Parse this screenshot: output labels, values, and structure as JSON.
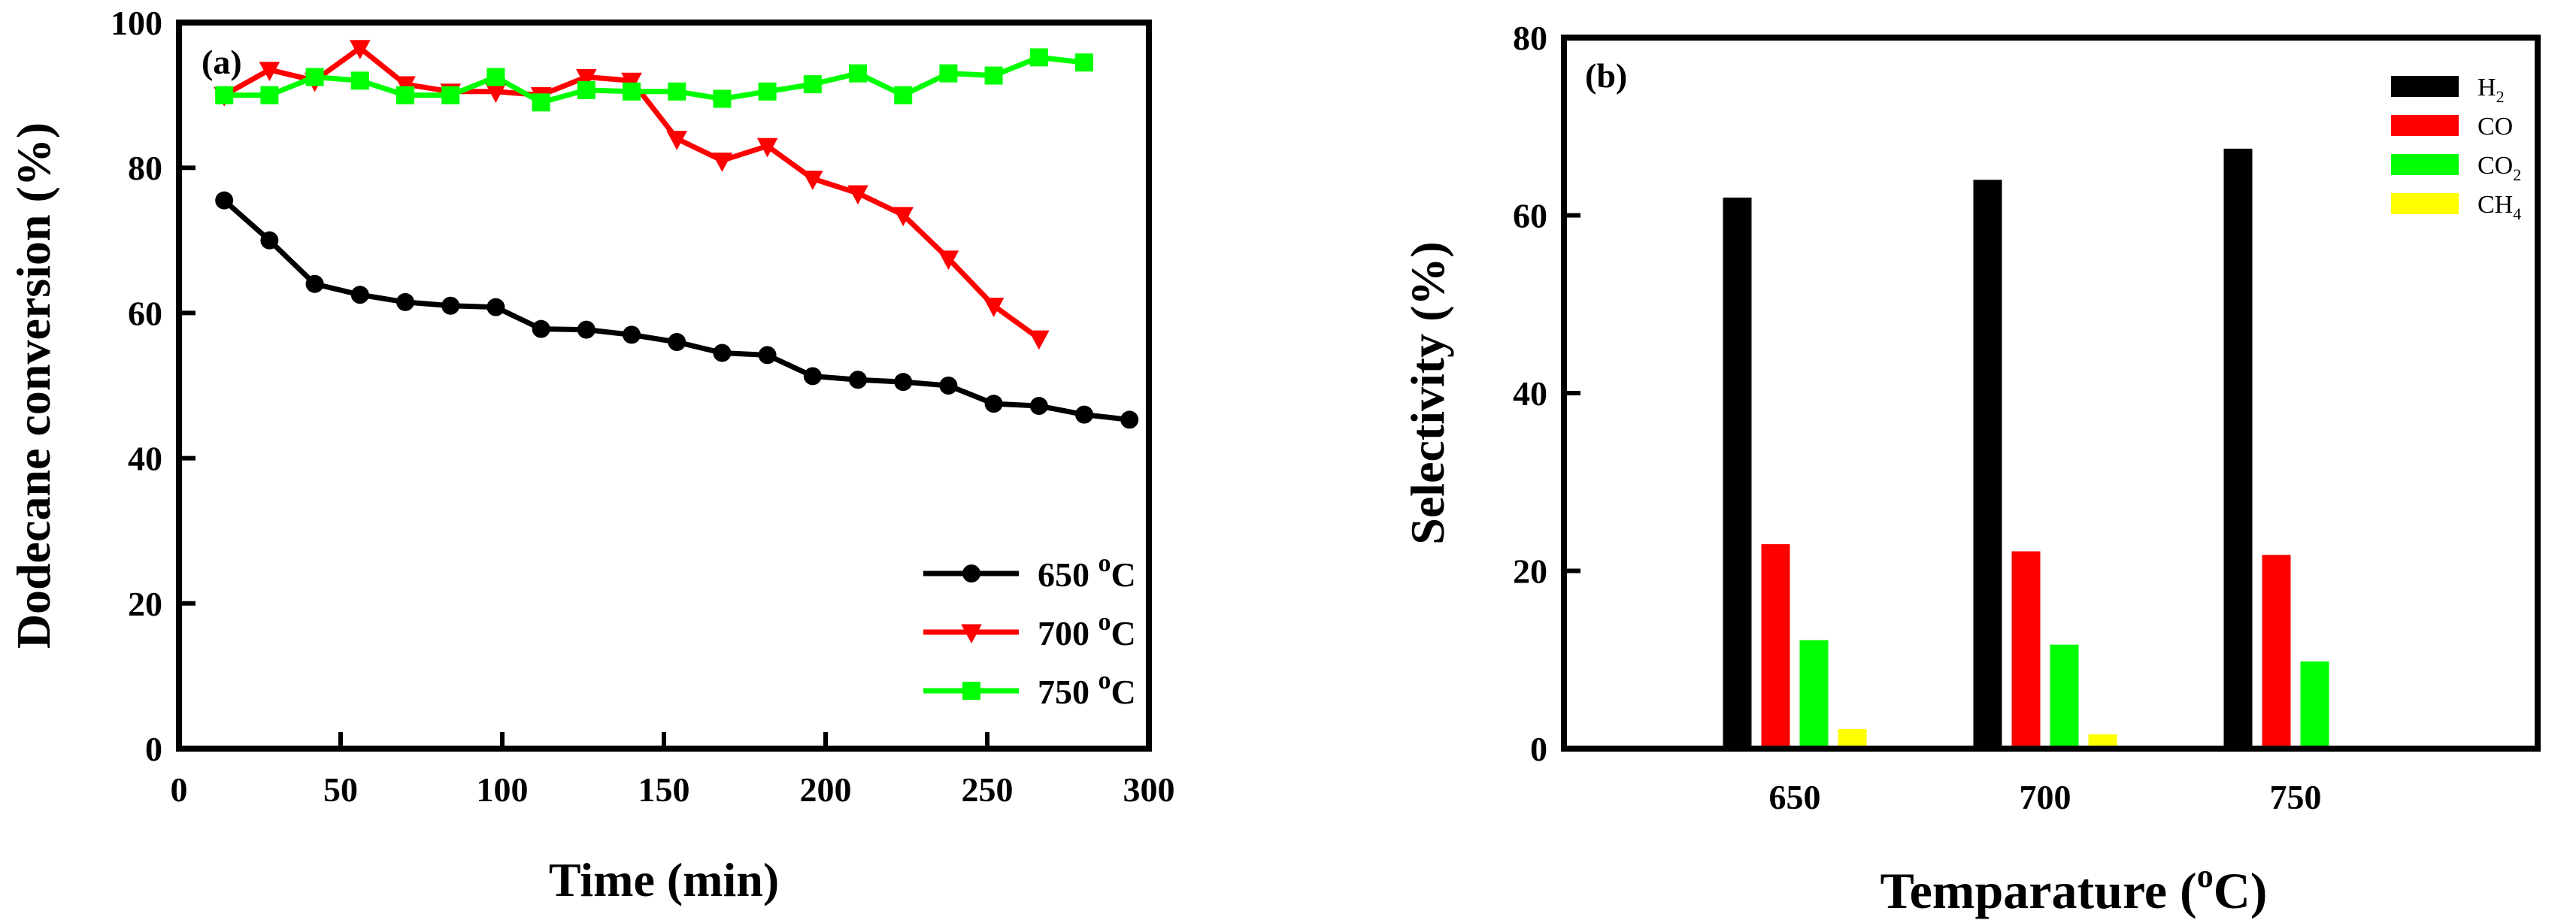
{
  "chart_data": [
    {
      "type": "line",
      "panel_label": "(a)",
      "xlabel": "Time (min)",
      "ylabel": "Dodecane conversion (%)",
      "xlim": [
        0,
        300
      ],
      "ylim": [
        0,
        100
      ],
      "xticks": [
        0,
        50,
        100,
        150,
        200,
        250,
        300
      ],
      "yticks": [
        0,
        20,
        40,
        60,
        80,
        100
      ],
      "grid": false,
      "legend_position": "bottom-right",
      "series": [
        {
          "name": "650 oC",
          "name_parts": [
            "650 ",
            "o",
            "C"
          ],
          "color": "#000000",
          "marker": "circle",
          "x": [
            14,
            28,
            42,
            56,
            70,
            84,
            98,
            112,
            126,
            140,
            154,
            168,
            182,
            196,
            210,
            224,
            238,
            252,
            266,
            280,
            294
          ],
          "y": [
            75.5,
            70,
            64,
            62.5,
            61.5,
            61,
            60.8,
            57.8,
            57.7,
            57,
            56,
            54.5,
            54.2,
            51.3,
            50.8,
            50.5,
            50,
            47.5,
            47.2,
            46,
            45.3
          ]
        },
        {
          "name": "700 oC",
          "name_parts": [
            "700 ",
            "o",
            "C"
          ],
          "color": "#ff0000",
          "marker": "triangle-down",
          "x": [
            14,
            28,
            42,
            56,
            70,
            84,
            98,
            112,
            126,
            140,
            154,
            168,
            182,
            196,
            210,
            224,
            238,
            252,
            266
          ],
          "y": [
            90,
            93.5,
            92,
            96.5,
            91.5,
            90.5,
            90.5,
            90,
            92.5,
            92,
            84,
            81,
            83,
            78.5,
            76.5,
            73.5,
            67.5,
            61,
            56.5
          ]
        },
        {
          "name": "750 oC",
          "name_parts": [
            "750 ",
            "o",
            "C"
          ],
          "color": "#00ff00",
          "marker": "square",
          "x": [
            14,
            28,
            42,
            56,
            70,
            84,
            98,
            112,
            126,
            140,
            154,
            168,
            182,
            196,
            210,
            224,
            238,
            252,
            266,
            280
          ],
          "y": [
            90,
            90,
            92.5,
            92,
            90,
            90,
            92.5,
            89,
            90.7,
            90.5,
            90.5,
            89.5,
            90.5,
            91.5,
            93,
            90,
            93,
            92.7,
            95.2,
            94.5
          ]
        }
      ]
    },
    {
      "type": "bar",
      "panel_label": "(b)",
      "xlabel": "Temparature (oC)",
      "xlabel_parts": [
        "Temparature (",
        "o",
        "C)"
      ],
      "ylabel": "Selectivity (%)",
      "ylim": [
        0,
        80
      ],
      "yticks": [
        0,
        20,
        40,
        60,
        80
      ],
      "categories": [
        "650",
        "700",
        "750"
      ],
      "grid": false,
      "legend_position": "top-right",
      "series": [
        {
          "name": "H2",
          "label_main": "H",
          "label_sub": "2",
          "color": "#000000",
          "values": [
            62,
            64,
            67.5
          ]
        },
        {
          "name": "CO",
          "label_main": "CO",
          "label_sub": "",
          "color": "#ff0000",
          "values": [
            23,
            22.2,
            21.8
          ]
        },
        {
          "name": "CO2",
          "label_main": "CO",
          "label_sub": "2",
          "color": "#00ff00",
          "values": [
            12.2,
            11.7,
            9.8
          ]
        },
        {
          "name": "CH4",
          "label_main": "CH",
          "label_sub": "4",
          "color": "#ffff00",
          "values": [
            2.2,
            1.6,
            0
          ]
        }
      ]
    }
  ]
}
